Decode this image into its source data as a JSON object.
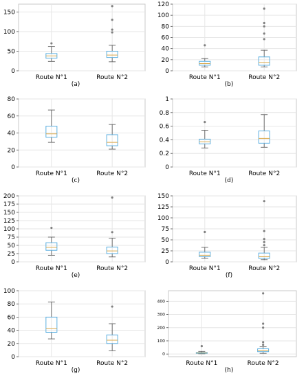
{
  "figure": {
    "panel_captions": [
      "(a)",
      "(b)",
      "(c)",
      "(d)",
      "(e)",
      "(f)",
      "(g)",
      "(h)"
    ]
  },
  "colors": {
    "box": "#5aaee0",
    "median": "#d9a84a",
    "whisker": "#5f5f5f",
    "outlier": "#7f7f7f",
    "grid": "#e6e6e6",
    "frame": "#c8c8c8",
    "text": "#000000"
  },
  "chart_data": [
    {
      "type": "box",
      "panel": "a",
      "caption": "(a)",
      "categories": [
        "Route N°1",
        "Route N°2"
      ],
      "ylim": [
        0,
        170
      ],
      "yticks": [
        0,
        50,
        100,
        150
      ],
      "grid": true,
      "boxes": [
        {
          "whisker_low": 24,
          "q1": 32,
          "median": 38,
          "q3": 44,
          "whisker_high": 62,
          "outliers": [
            70
          ]
        },
        {
          "whisker_low": 23,
          "q1": 34,
          "median": 40,
          "q3": 50,
          "whisker_high": 65,
          "outliers": [
            98,
            105,
            130,
            165
          ]
        }
      ]
    },
    {
      "type": "box",
      "panel": "b",
      "caption": "(b)",
      "categories": [
        "Route N°1",
        "Route N°2"
      ],
      "ylim": [
        0,
        120
      ],
      "yticks": [
        0,
        20,
        40,
        60,
        80,
        100,
        120
      ],
      "grid": true,
      "boxes": [
        {
          "whisker_low": 7,
          "q1": 10,
          "median": 13,
          "q3": 17,
          "whisker_high": 22,
          "outliers": [
            46
          ]
        },
        {
          "whisker_low": 7,
          "q1": 10,
          "median": 15,
          "q3": 25,
          "whisker_high": 37,
          "outliers": [
            57,
            67,
            80,
            86,
            112
          ]
        }
      ]
    },
    {
      "type": "box",
      "panel": "c",
      "caption": "(c)",
      "categories": [
        "Route N°1",
        "Route N°2"
      ],
      "ylim": [
        0,
        80
      ],
      "yticks": [
        0,
        20,
        40,
        60,
        80
      ],
      "grid": true,
      "boxes": [
        {
          "whisker_low": 29,
          "q1": 35,
          "median": 39,
          "q3": 48,
          "whisker_high": 67,
          "outliers": []
        },
        {
          "whisker_low": 21,
          "q1": 25,
          "median": 29,
          "q3": 38,
          "whisker_high": 50,
          "outliers": []
        }
      ]
    },
    {
      "type": "box",
      "panel": "d",
      "caption": "(d)",
      "categories": [
        "Route N°1",
        "Route N°2"
      ],
      "ylim": [
        0,
        1.0
      ],
      "yticks": [
        0.0,
        0.2,
        0.4,
        0.6,
        0.8,
        1.0
      ],
      "grid": true,
      "boxes": [
        {
          "whisker_low": 0.28,
          "q1": 0.34,
          "median": 0.37,
          "q3": 0.41,
          "whisker_high": 0.54,
          "outliers": [
            0.66
          ]
        },
        {
          "whisker_low": 0.29,
          "q1": 0.35,
          "median": 0.42,
          "q3": 0.53,
          "whisker_high": 0.77,
          "outliers": []
        }
      ]
    },
    {
      "type": "box",
      "panel": "e",
      "caption": "(e)",
      "categories": [
        "Route N°1",
        "Route N°2"
      ],
      "ylim": [
        0,
        200
      ],
      "yticks": [
        0,
        25,
        50,
        75,
        100,
        125,
        150,
        175,
        200
      ],
      "grid": true,
      "boxes": [
        {
          "whisker_low": 20,
          "q1": 35,
          "median": 44,
          "q3": 58,
          "whisker_high": 75,
          "outliers": [
            103
          ]
        },
        {
          "whisker_low": 15,
          "q1": 25,
          "median": 33,
          "q3": 45,
          "whisker_high": 72,
          "outliers": [
            90,
            195
          ]
        }
      ]
    },
    {
      "type": "box",
      "panel": "f",
      "caption": "(f)",
      "categories": [
        "Route N°1",
        "Route N°2"
      ],
      "ylim": [
        0,
        150
      ],
      "yticks": [
        0,
        25,
        50,
        75,
        100,
        125,
        150
      ],
      "grid": true,
      "boxes": [
        {
          "whisker_low": 8,
          "q1": 12,
          "median": 15,
          "q3": 22,
          "whisker_high": 33,
          "outliers": [
            68
          ]
        },
        {
          "whisker_low": 5,
          "q1": 8,
          "median": 12,
          "q3": 20,
          "whisker_high": 33,
          "outliers": [
            38,
            45,
            52,
            70,
            138
          ]
        }
      ]
    },
    {
      "type": "box",
      "panel": "g",
      "caption": "(g)",
      "categories": [
        "Route N°1",
        "Route N°2"
      ],
      "ylim": [
        0,
        100
      ],
      "yticks": [
        0,
        20,
        40,
        60,
        80,
        100
      ],
      "grid": true,
      "boxes": [
        {
          "whisker_low": 27,
          "q1": 37,
          "median": 43,
          "q3": 60,
          "whisker_high": 83,
          "outliers": []
        },
        {
          "whisker_low": 9,
          "q1": 20,
          "median": 25,
          "q3": 33,
          "whisker_high": 50,
          "outliers": [
            76
          ]
        }
      ]
    },
    {
      "type": "box",
      "panel": "h",
      "caption": "(h)",
      "categories": [
        "Route N°1",
        "Route N°2"
      ],
      "ylim": [
        -20,
        480
      ],
      "yticks": [
        0,
        100,
        200,
        300,
        400
      ],
      "grid": true,
      "boxes": [
        {
          "whisker_low": 2,
          "q1": 5,
          "median": 8,
          "q3": 12,
          "whisker_high": 20,
          "outliers": [
            60
          ]
        },
        {
          "whisker_low": 5,
          "q1": 18,
          "median": 28,
          "q3": 40,
          "whisker_high": 55,
          "outliers": [
            70,
            90,
            200,
            230,
            460
          ]
        }
      ]
    }
  ]
}
